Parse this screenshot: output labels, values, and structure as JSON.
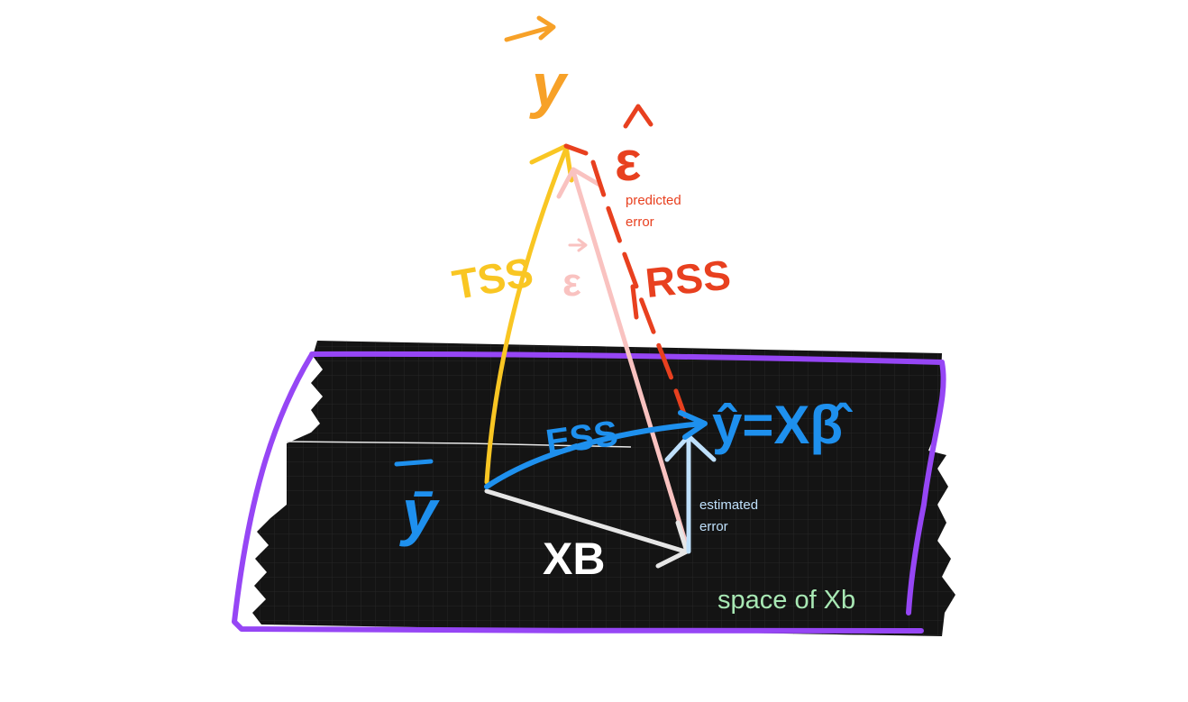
{
  "labels": {
    "predicted_error_line1": "predicted",
    "predicted_error_line2": "error",
    "estimated_error_line1": "estimated",
    "estimated_error_line2": "error",
    "space": "space of Xb"
  },
  "handwritten": {
    "y_vector": "y",
    "epsilon_hat": "ε",
    "epsilon_vector": "ε",
    "tss": "TSS",
    "rss": "RSS",
    "ess": "ESS",
    "y_hat_eq": "ŷ=Xβ̂",
    "y_bar": "ȳ",
    "xb": "XB"
  },
  "colors": {
    "orange": "#f7a128",
    "red": "#e8401f",
    "pink": "#f9c2c0",
    "yellow": "#f9c623",
    "blue": "#1e90ee",
    "light_blue": "#bfe0fb",
    "white": "#ebebeb",
    "purple": "#9646f5",
    "green": "#a8e8b4",
    "plane": "#141414"
  }
}
